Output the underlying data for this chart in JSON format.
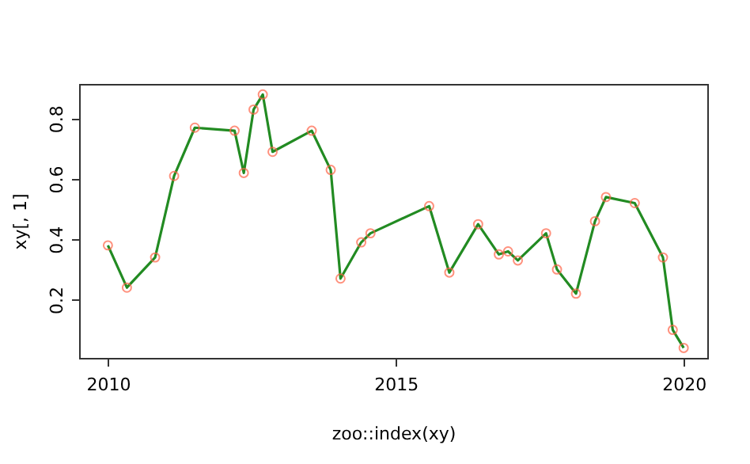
{
  "chart_data": {
    "type": "line",
    "xlabel": "zoo::index(xy)",
    "ylabel": "xy[, 1]",
    "x": [
      2010.0,
      2010.33,
      2010.82,
      2011.15,
      2011.51,
      2012.2,
      2012.36,
      2012.53,
      2012.69,
      2012.86,
      2013.54,
      2013.87,
      2014.04,
      2014.4,
      2014.56,
      2015.58,
      2015.93,
      2016.43,
      2016.79,
      2016.95,
      2017.12,
      2017.61,
      2017.8,
      2018.13,
      2018.46,
      2018.65,
      2019.15,
      2019.64,
      2019.81,
      2020.0
    ],
    "series": [
      {
        "color": "#228b22",
        "marker": "none",
        "values": [
          0.38,
          0.24,
          0.34,
          0.61,
          0.77,
          0.76,
          0.62,
          0.83,
          0.88,
          0.69,
          0.76,
          0.63,
          0.27,
          0.39,
          0.42,
          0.51,
          0.29,
          0.45,
          0.35,
          0.36,
          0.33,
          0.42,
          0.3,
          0.22,
          0.46,
          0.54,
          0.52,
          0.34,
          0.1,
          0.04
        ]
      },
      {
        "type": "scatter",
        "color": "#ff6347",
        "marker": "circle",
        "values": [
          0.38,
          0.24,
          0.34,
          0.61,
          0.77,
          0.76,
          0.62,
          0.83,
          0.88,
          0.69,
          0.76,
          0.63,
          0.27,
          0.39,
          0.42,
          0.51,
          0.29,
          0.45,
          0.35,
          0.36,
          0.33,
          0.42,
          0.3,
          0.22,
          0.46,
          0.54,
          0.52,
          0.34,
          0.1,
          0.04
        ]
      }
    ],
    "xlim": [
      2009.5,
      2020.41
    ],
    "xticks": [
      2010,
      2015,
      2020
    ],
    "ylim": [
      0.007,
      0.915
    ],
    "yticks": [
      0.2,
      0.4,
      0.6,
      0.8
    ],
    "grid": false
  }
}
